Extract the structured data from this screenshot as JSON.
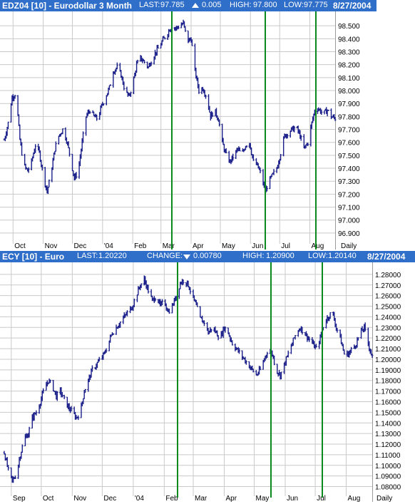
{
  "panels": [
    {
      "symbol": "EDZ04 [10] - Eurodollar 3 Month",
      "last_label": "LAST:",
      "last": "97.785",
      "change_label": "",
      "change_dir": "up",
      "change": "0.005",
      "high_label": "HIGH:",
      "high": "97.800",
      "low_label": "LOW:",
      "low": "97.775",
      "date": "8/27/2004"
    },
    {
      "symbol": "ECY [10] - Euro",
      "last_label": "LAST:",
      "last": "1.20220",
      "change_label": "CHANGE:",
      "change_dir": "down",
      "change": "0.00780",
      "high_label": "HIGH:",
      "high": "1.20900",
      "low_label": "LOW:",
      "low": "1.20140",
      "date": "8/27/2004"
    }
  ],
  "colors": {
    "header_bg": "#2f6ec9",
    "header_text": "#ffffff",
    "bar": "#1a1f8a",
    "grid": "#c9c9c9",
    "marker": "#0a8a1e",
    "axis_text": "#000000"
  },
  "chart_data": [
    {
      "type": "bar",
      "subtype": "ohlc",
      "title": "EDZ04 [10] - Eurodollar 3 Month",
      "x_range": [
        "2003-09-22",
        "2004-08-27"
      ],
      "x_ticks": [
        {
          "label": "Oct",
          "date": "2003-10-01"
        },
        {
          "label": "Nov",
          "date": "2003-11-01"
        },
        {
          "label": "Dec",
          "date": "2003-12-01"
        },
        {
          "label": "'04",
          "date": "2004-01-01"
        },
        {
          "label": "Feb",
          "date": "2004-02-01"
        },
        {
          "label": "Mar",
          "date": "2004-03-01"
        },
        {
          "label": "Apr",
          "date": "2004-04-01"
        },
        {
          "label": "May",
          "date": "2004-05-01"
        },
        {
          "label": "Jun",
          "date": "2004-06-01"
        },
        {
          "label": "Jul",
          "date": "2004-07-01"
        },
        {
          "label": "Aug",
          "date": "2004-08-01"
        }
      ],
      "x_end_label": "Daily",
      "ylim": [
        96.85,
        98.6
      ],
      "y_ticks": [
        "96.900",
        "97.000",
        "97.100",
        "97.200",
        "97.300",
        "97.400",
        "97.500",
        "97.600",
        "97.700",
        "97.800",
        "97.900",
        "98.000",
        "98.100",
        "98.200",
        "98.300",
        "98.400",
        "98.500"
      ],
      "grid": true,
      "series": [
        {
          "close": [
            [
              "2003-09-22",
              97.62
            ],
            [
              "2003-09-26",
              97.75
            ],
            [
              "2003-09-30",
              97.95
            ],
            [
              "2003-10-04",
              97.98
            ],
            [
              "2003-10-08",
              97.62
            ],
            [
              "2003-10-12",
              97.42
            ],
            [
              "2003-10-16",
              97.38
            ],
            [
              "2003-10-20",
              97.45
            ],
            [
              "2003-10-24",
              97.58
            ],
            [
              "2003-10-28",
              97.52
            ],
            [
              "2003-11-01",
              97.35
            ],
            [
              "2003-11-05",
              97.22
            ],
            [
              "2003-11-09",
              97.36
            ],
            [
              "2003-11-13",
              97.55
            ],
            [
              "2003-11-17",
              97.65
            ],
            [
              "2003-11-21",
              97.7
            ],
            [
              "2003-11-25",
              97.62
            ],
            [
              "2003-11-29",
              97.48
            ],
            [
              "2003-12-03",
              97.32
            ],
            [
              "2003-12-07",
              97.38
            ],
            [
              "2003-12-11",
              97.6
            ],
            [
              "2003-12-15",
              97.8
            ],
            [
              "2003-12-19",
              97.85
            ],
            [
              "2003-12-23",
              97.8
            ],
            [
              "2003-12-27",
              97.78
            ],
            [
              "2003-12-31",
              97.88
            ],
            [
              "2004-01-04",
              97.95
            ],
            [
              "2004-01-08",
              98.02
            ],
            [
              "2004-01-12",
              98.15
            ],
            [
              "2004-01-16",
              98.18
            ],
            [
              "2004-01-20",
              98.12
            ],
            [
              "2004-01-24",
              98.0
            ],
            [
              "2004-01-28",
              97.95
            ],
            [
              "2004-02-01",
              98.05
            ],
            [
              "2004-02-05",
              98.2
            ],
            [
              "2004-02-09",
              98.25
            ],
            [
              "2004-02-13",
              98.22
            ],
            [
              "2004-02-17",
              98.18
            ],
            [
              "2004-02-21",
              98.25
            ],
            [
              "2004-02-25",
              98.3
            ],
            [
              "2004-02-29",
              98.35
            ],
            [
              "2004-03-04",
              98.4
            ],
            [
              "2004-03-08",
              98.45
            ],
            [
              "2004-03-12",
              98.5
            ],
            [
              "2004-03-16",
              98.48
            ],
            [
              "2004-03-20",
              98.5
            ],
            [
              "2004-03-24",
              98.52
            ],
            [
              "2004-03-28",
              98.38
            ],
            [
              "2004-04-01",
              98.4
            ],
            [
              "2004-04-05",
              98.15
            ],
            [
              "2004-04-09",
              98.0
            ],
            [
              "2004-04-13",
              98.02
            ],
            [
              "2004-04-17",
              97.95
            ],
            [
              "2004-04-21",
              97.8
            ],
            [
              "2004-04-25",
              97.85
            ],
            [
              "2004-04-29",
              97.78
            ],
            [
              "2004-05-03",
              97.6
            ],
            [
              "2004-05-07",
              97.5
            ],
            [
              "2004-05-11",
              97.45
            ],
            [
              "2004-05-15",
              97.5
            ],
            [
              "2004-05-19",
              97.55
            ],
            [
              "2004-05-23",
              97.5
            ],
            [
              "2004-05-27",
              97.58
            ],
            [
              "2004-05-31",
              97.6
            ],
            [
              "2004-06-04",
              97.45
            ],
            [
              "2004-06-08",
              97.42
            ],
            [
              "2004-06-12",
              97.35
            ],
            [
              "2004-06-16",
              97.22
            ],
            [
              "2004-06-20",
              97.3
            ],
            [
              "2004-06-24",
              97.35
            ],
            [
              "2004-06-28",
              97.4
            ],
            [
              "2004-07-02",
              97.52
            ],
            [
              "2004-07-06",
              97.65
            ],
            [
              "2004-07-10",
              97.68
            ],
            [
              "2004-07-14",
              97.7
            ],
            [
              "2004-07-18",
              97.72
            ],
            [
              "2004-07-22",
              97.65
            ],
            [
              "2004-07-26",
              97.55
            ],
            [
              "2004-07-30",
              97.6
            ],
            [
              "2004-08-03",
              97.75
            ],
            [
              "2004-08-07",
              97.88
            ],
            [
              "2004-08-11",
              97.85
            ],
            [
              "2004-08-15",
              97.82
            ],
            [
              "2004-08-19",
              97.85
            ],
            [
              "2004-08-23",
              97.8
            ],
            [
              "2004-08-27",
              97.785
            ]
          ]
        }
      ]
    },
    {
      "type": "bar",
      "subtype": "ohlc",
      "title": "ECY [10] - Euro",
      "x_range": [
        "2003-08-25",
        "2004-08-27"
      ],
      "x_ticks": [
        {
          "label": "Sep",
          "date": "2003-09-01"
        },
        {
          "label": "Oct",
          "date": "2003-10-01"
        },
        {
          "label": "Nov",
          "date": "2003-11-01"
        },
        {
          "label": "Dec",
          "date": "2003-12-01"
        },
        {
          "label": "'04",
          "date": "2004-01-01"
        },
        {
          "label": "Feb",
          "date": "2004-02-01"
        },
        {
          "label": "Mar",
          "date": "2004-03-01"
        },
        {
          "label": "Apr",
          "date": "2004-04-01"
        },
        {
          "label": "May",
          "date": "2004-05-01"
        },
        {
          "label": "Jun",
          "date": "2004-06-01"
        },
        {
          "label": "Jul",
          "date": "2004-07-01"
        },
        {
          "label": "Aug",
          "date": "2004-08-01"
        }
      ],
      "x_end_label": "Daily",
      "ylim": [
        1.075,
        1.29
      ],
      "y_ticks": [
        "1.08000",
        "1.09000",
        "1.10000",
        "1.11000",
        "1.12000",
        "1.13000",
        "1.14000",
        "1.15000",
        "1.16000",
        "1.17000",
        "1.18000",
        "1.19000",
        "1.20000",
        "1.21000",
        "1.22000",
        "1.23000",
        "1.24000",
        "1.25000",
        "1.26000",
        "1.27000",
        "1.28000"
      ],
      "grid": true,
      "series": [
        {
          "close": [
            [
              "2003-08-25",
              1.112
            ],
            [
              "2003-08-29",
              1.095
            ],
            [
              "2003-09-02",
              1.085
            ],
            [
              "2003-09-06",
              1.092
            ],
            [
              "2003-09-10",
              1.11
            ],
            [
              "2003-09-14",
              1.125
            ],
            [
              "2003-09-18",
              1.13
            ],
            [
              "2003-09-22",
              1.145
            ],
            [
              "2003-09-26",
              1.15
            ],
            [
              "2003-09-30",
              1.16
            ],
            [
              "2003-10-04",
              1.172
            ],
            [
              "2003-10-08",
              1.18
            ],
            [
              "2003-10-12",
              1.175
            ],
            [
              "2003-10-16",
              1.165
            ],
            [
              "2003-10-20",
              1.17
            ],
            [
              "2003-10-24",
              1.162
            ],
            [
              "2003-10-28",
              1.155
            ],
            [
              "2003-11-01",
              1.15
            ],
            [
              "2003-11-05",
              1.145
            ],
            [
              "2003-11-09",
              1.15
            ],
            [
              "2003-11-13",
              1.17
            ],
            [
              "2003-11-17",
              1.18
            ],
            [
              "2003-11-21",
              1.19
            ],
            [
              "2003-11-25",
              1.195
            ],
            [
              "2003-11-29",
              1.2
            ],
            [
              "2003-12-03",
              1.205
            ],
            [
              "2003-12-07",
              1.215
            ],
            [
              "2003-12-11",
              1.225
            ],
            [
              "2003-12-15",
              1.23
            ],
            [
              "2003-12-19",
              1.235
            ],
            [
              "2003-12-23",
              1.24
            ],
            [
              "2003-12-27",
              1.245
            ],
            [
              "2003-12-31",
              1.25
            ],
            [
              "2004-01-04",
              1.26
            ],
            [
              "2004-01-08",
              1.27
            ],
            [
              "2004-01-12",
              1.275
            ],
            [
              "2004-01-16",
              1.265
            ],
            [
              "2004-01-20",
              1.255
            ],
            [
              "2004-01-24",
              1.26
            ],
            [
              "2004-01-28",
              1.25
            ],
            [
              "2004-02-01",
              1.255
            ],
            [
              "2004-02-05",
              1.245
            ],
            [
              "2004-02-09",
              1.25
            ],
            [
              "2004-02-13",
              1.26
            ],
            [
              "2004-02-17",
              1.272
            ],
            [
              "2004-02-21",
              1.275
            ],
            [
              "2004-02-25",
              1.27
            ],
            [
              "2004-02-29",
              1.26
            ],
            [
              "2004-03-04",
              1.25
            ],
            [
              "2004-03-08",
              1.238
            ],
            [
              "2004-03-12",
              1.235
            ],
            [
              "2004-03-16",
              1.225
            ],
            [
              "2004-03-20",
              1.23
            ],
            [
              "2004-03-24",
              1.225
            ],
            [
              "2004-03-28",
              1.22
            ],
            [
              "2004-04-01",
              1.23
            ],
            [
              "2004-04-05",
              1.225
            ],
            [
              "2004-04-09",
              1.215
            ],
            [
              "2004-04-13",
              1.21
            ],
            [
              "2004-04-17",
              1.205
            ],
            [
              "2004-04-21",
              1.2
            ],
            [
              "2004-04-25",
              1.195
            ],
            [
              "2004-04-29",
              1.19
            ],
            [
              "2004-05-03",
              1.185
            ],
            [
              "2004-05-07",
              1.19
            ],
            [
              "2004-05-11",
              1.2
            ],
            [
              "2004-05-15",
              1.21
            ],
            [
              "2004-05-19",
              1.205
            ],
            [
              "2004-05-23",
              1.19
            ],
            [
              "2004-05-27",
              1.185
            ],
            [
              "2004-05-31",
              1.195
            ],
            [
              "2004-06-04",
              1.205
            ],
            [
              "2004-06-08",
              1.215
            ],
            [
              "2004-06-12",
              1.225
            ],
            [
              "2004-06-16",
              1.23
            ],
            [
              "2004-06-20",
              1.225
            ],
            [
              "2004-06-24",
              1.22
            ],
            [
              "2004-06-28",
              1.215
            ],
            [
              "2004-07-02",
              1.21
            ],
            [
              "2004-07-06",
              1.22
            ],
            [
              "2004-07-10",
              1.235
            ],
            [
              "2004-07-14",
              1.24
            ],
            [
              "2004-07-18",
              1.245
            ],
            [
              "2004-07-22",
              1.23
            ],
            [
              "2004-07-26",
              1.22
            ],
            [
              "2004-07-30",
              1.205
            ],
            [
              "2004-08-03",
              1.205
            ],
            [
              "2004-08-07",
              1.21
            ],
            [
              "2004-08-11",
              1.215
            ],
            [
              "2004-08-15",
              1.225
            ],
            [
              "2004-08-19",
              1.23
            ],
            [
              "2004-08-23",
              1.215
            ],
            [
              "2004-08-27",
              1.2022
            ]
          ]
        }
      ]
    }
  ],
  "markers": [
    {
      "date_top": "2004-03-12",
      "date_bottom": "2004-02-14"
    },
    {
      "date_top": "2004-06-16",
      "date_bottom": "2004-05-18"
    },
    {
      "date_top": "2004-08-07",
      "date_bottom": "2004-07-08"
    }
  ]
}
